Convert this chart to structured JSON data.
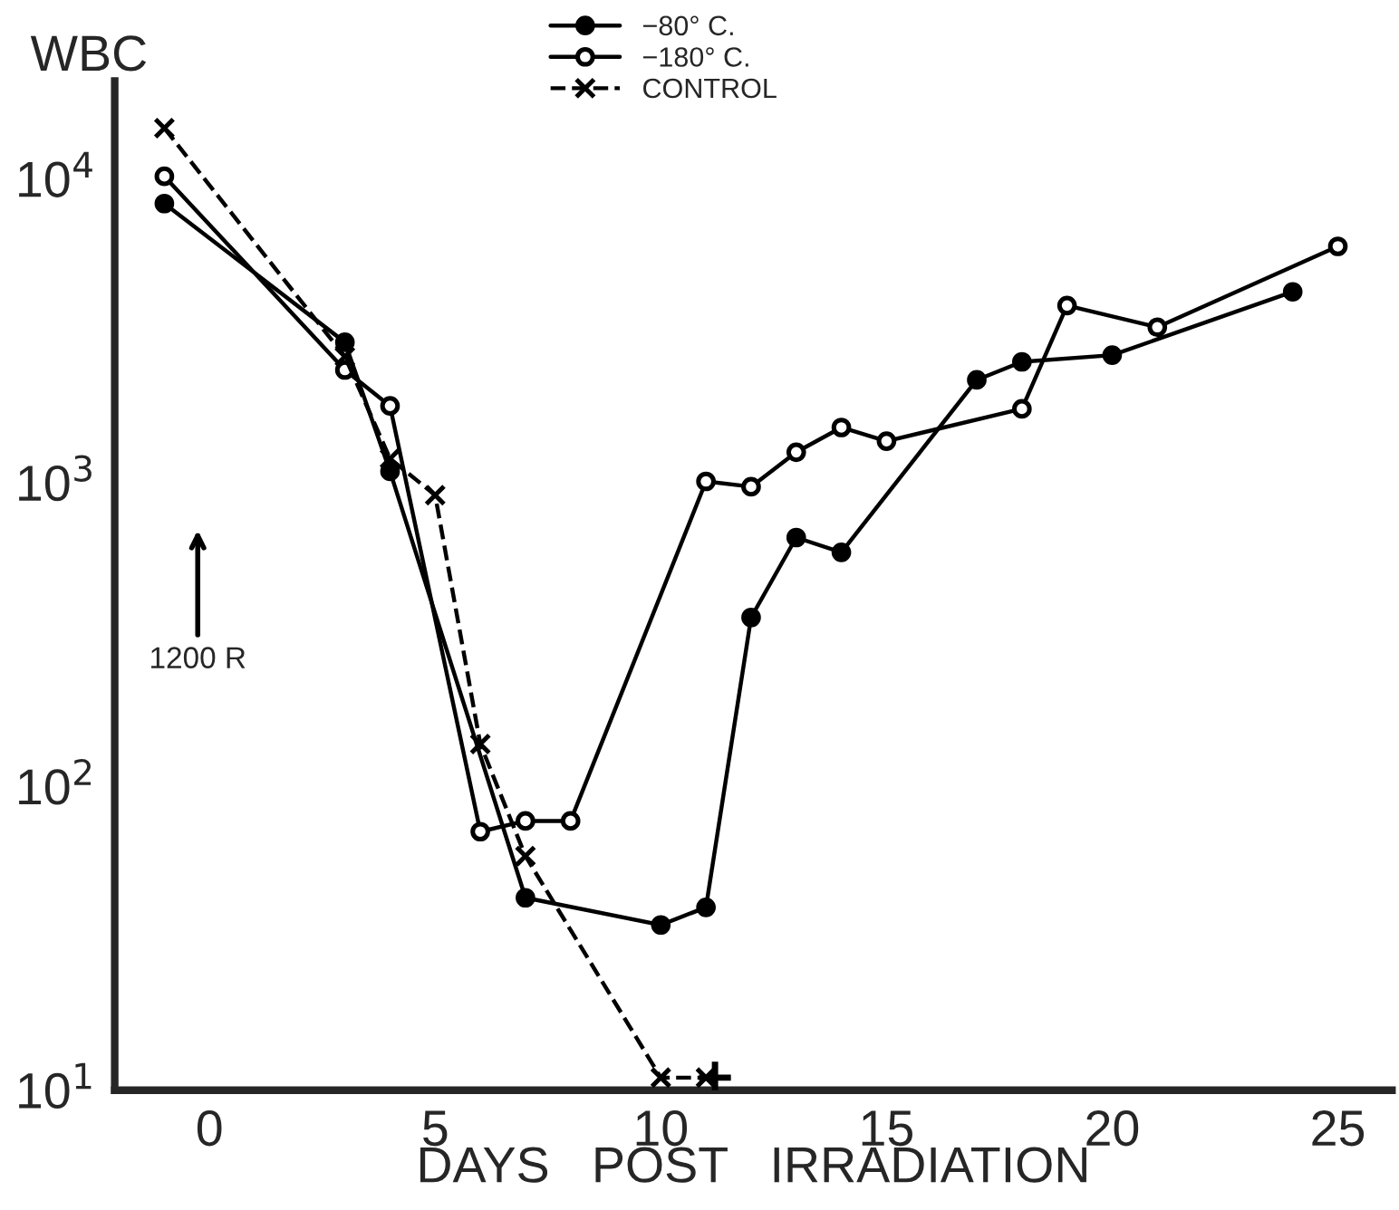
{
  "chart_data": {
    "type": "line",
    "ylabel": "WBC",
    "xlabel": "DAYS   POST   IRRADIATION",
    "log": "y",
    "xlim": [
      -2.1,
      26.2
    ],
    "xticks": [
      0,
      5,
      10,
      15,
      20,
      25
    ],
    "ylim": [
      10,
      21000
    ],
    "yticks": [
      {
        "value": 10,
        "label": "10$^{1}$"
      },
      {
        "value": 100,
        "label": "10$^{2}$"
      },
      {
        "value": 1000,
        "label": "10$^{3}$"
      },
      {
        "value": 10000,
        "label": "10$^{4}$"
      }
    ],
    "grid": false,
    "legend": "top",
    "annotations": [
      "1200 R"
    ],
    "series": [
      {
        "name": "−80° C.",
        "color": "#000000",
        "marker": "circle",
        "line_style": "solid",
        "x": [
          -1,
          3,
          4,
          7,
          10,
          11,
          12,
          13,
          14,
          17,
          18,
          20,
          24
        ],
        "values": [
          8300,
          2900,
          1090,
          43,
          35,
          40,
          360,
          660,
          590,
          2180,
          2500,
          2630,
          4250
        ]
      },
      {
        "name": "−180° C.",
        "color": "#000000",
        "marker": "circle_open",
        "line_style": "solid",
        "x": [
          -1,
          3,
          4,
          6,
          7,
          8,
          11,
          12,
          13,
          14,
          15,
          18,
          19,
          21,
          25
        ],
        "values": [
          10200,
          2350,
          1790,
          71,
          77,
          77,
          1010,
          970,
          1260,
          1520,
          1370,
          1750,
          3830,
          3250,
          6000
        ]
      },
      {
        "name": "CONTROL",
        "color": "#000000",
        "marker": "x",
        "line_style": "dashed",
        "x": [
          -1,
          3,
          4,
          5,
          6,
          7,
          10,
          11
        ],
        "values": [
          14700,
          2600,
          1200,
          910,
          138,
          59,
          11,
          11
        ]
      },
      {
        "type": "scatter",
        "color": "#000000",
        "marker": "cross",
        "x": [
          11.2
        ],
        "values": [
          11
        ]
      }
    ]
  }
}
